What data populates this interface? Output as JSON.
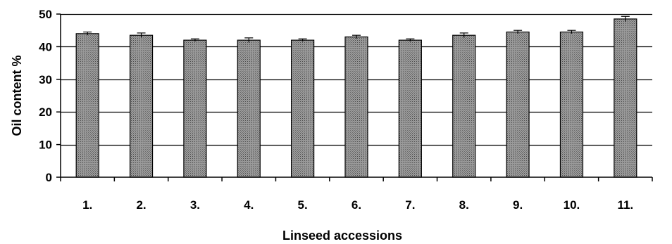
{
  "chart_data": {
    "type": "bar",
    "title": "",
    "xlabel": "Linseed accessions",
    "ylabel": "Oil content %",
    "categories": [
      "1.",
      "2.",
      "3.",
      "4.",
      "5.",
      "6.",
      "7.",
      "8.",
      "9.",
      "10.",
      "11."
    ],
    "values": [
      44.0,
      43.5,
      42.0,
      42.0,
      42.0,
      43.0,
      42.0,
      43.5,
      44.5,
      44.5,
      48.5
    ],
    "errors": [
      0.5,
      0.7,
      0.4,
      0.7,
      0.4,
      0.5,
      0.4,
      0.7,
      0.5,
      0.5,
      0.8
    ],
    "ylim": [
      0,
      50
    ],
    "yticks": [
      0,
      10,
      20,
      30,
      40,
      50
    ],
    "grid": true,
    "legend": "none",
    "colors": {
      "bar_fill": "#8f8f8f",
      "bar_stroke": "#000000",
      "grid": "#000000",
      "axis": "#000000"
    }
  }
}
